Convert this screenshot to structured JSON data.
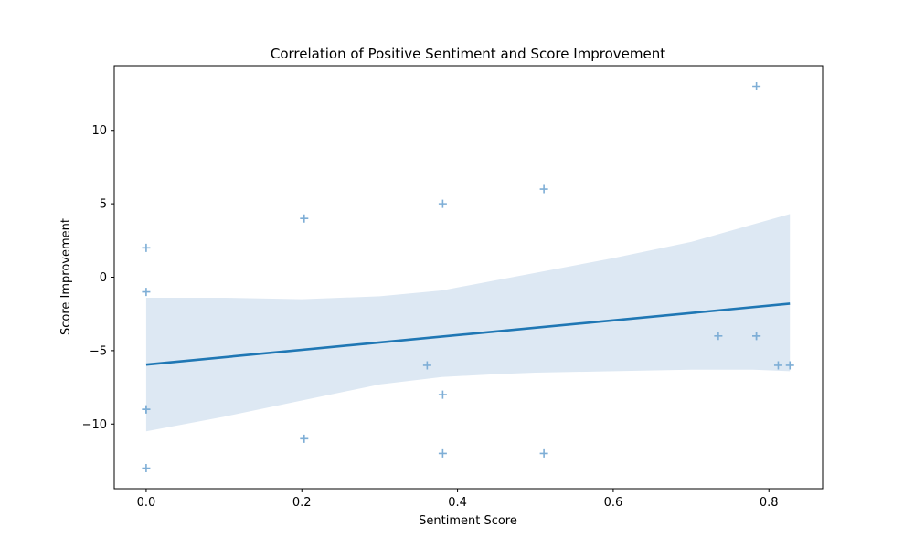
{
  "chart_data": {
    "type": "scatter",
    "title": "Correlation of Positive Sentiment and Score Improvement",
    "xlabel": "Sentiment Score",
    "ylabel": "Score Improvement",
    "xlim": [
      -0.041,
      0.869
    ],
    "ylim": [
      -14.4,
      14.4
    ],
    "xticks": [
      0.0,
      0.2,
      0.4,
      0.6,
      0.8
    ],
    "xtick_labels": [
      "0.0",
      "0.2",
      "0.4",
      "0.6",
      "0.8"
    ],
    "yticks": [
      -10,
      -5,
      0,
      5,
      10
    ],
    "ytick_labels": [
      "−10",
      "−5",
      "0",
      "5",
      "10"
    ],
    "grid": false,
    "marker": "+",
    "point_color": "#7eaed6",
    "line_color": "#1f77b4",
    "band_color": "#dde8f3",
    "points": [
      {
        "x": 0.0,
        "y": 2
      },
      {
        "x": 0.0,
        "y": -1
      },
      {
        "x": 0.0,
        "y": -9
      },
      {
        "x": 0.0,
        "y": -9
      },
      {
        "x": 0.0,
        "y": -13
      },
      {
        "x": 0.203,
        "y": 4
      },
      {
        "x": 0.203,
        "y": -11
      },
      {
        "x": 0.361,
        "y": -6
      },
      {
        "x": 0.381,
        "y": 5
      },
      {
        "x": 0.381,
        "y": -8
      },
      {
        "x": 0.381,
        "y": -12
      },
      {
        "x": 0.511,
        "y": 6
      },
      {
        "x": 0.511,
        "y": -12
      },
      {
        "x": 0.735,
        "y": -4
      },
      {
        "x": 0.784,
        "y": 13
      },
      {
        "x": 0.784,
        "y": -4
      },
      {
        "x": 0.784,
        "y": -4
      },
      {
        "x": 0.812,
        "y": -6
      },
      {
        "x": 0.827,
        "y": -6
      }
    ],
    "regression": {
      "x": [
        0.0,
        0.827
      ],
      "y": [
        -5.95,
        -1.8
      ]
    },
    "confidence_band": {
      "x": [
        0.0,
        0.1,
        0.2,
        0.3,
        0.38,
        0.45,
        0.5,
        0.6,
        0.7,
        0.78,
        0.827
      ],
      "upper": [
        -1.4,
        -1.4,
        -1.5,
        -1.3,
        -0.9,
        -0.2,
        0.3,
        1.3,
        2.4,
        3.6,
        4.3
      ],
      "lower": [
        -10.5,
        -9.5,
        -8.4,
        -7.3,
        -6.8,
        -6.6,
        -6.5,
        -6.4,
        -6.3,
        -6.3,
        -6.4
      ]
    }
  }
}
